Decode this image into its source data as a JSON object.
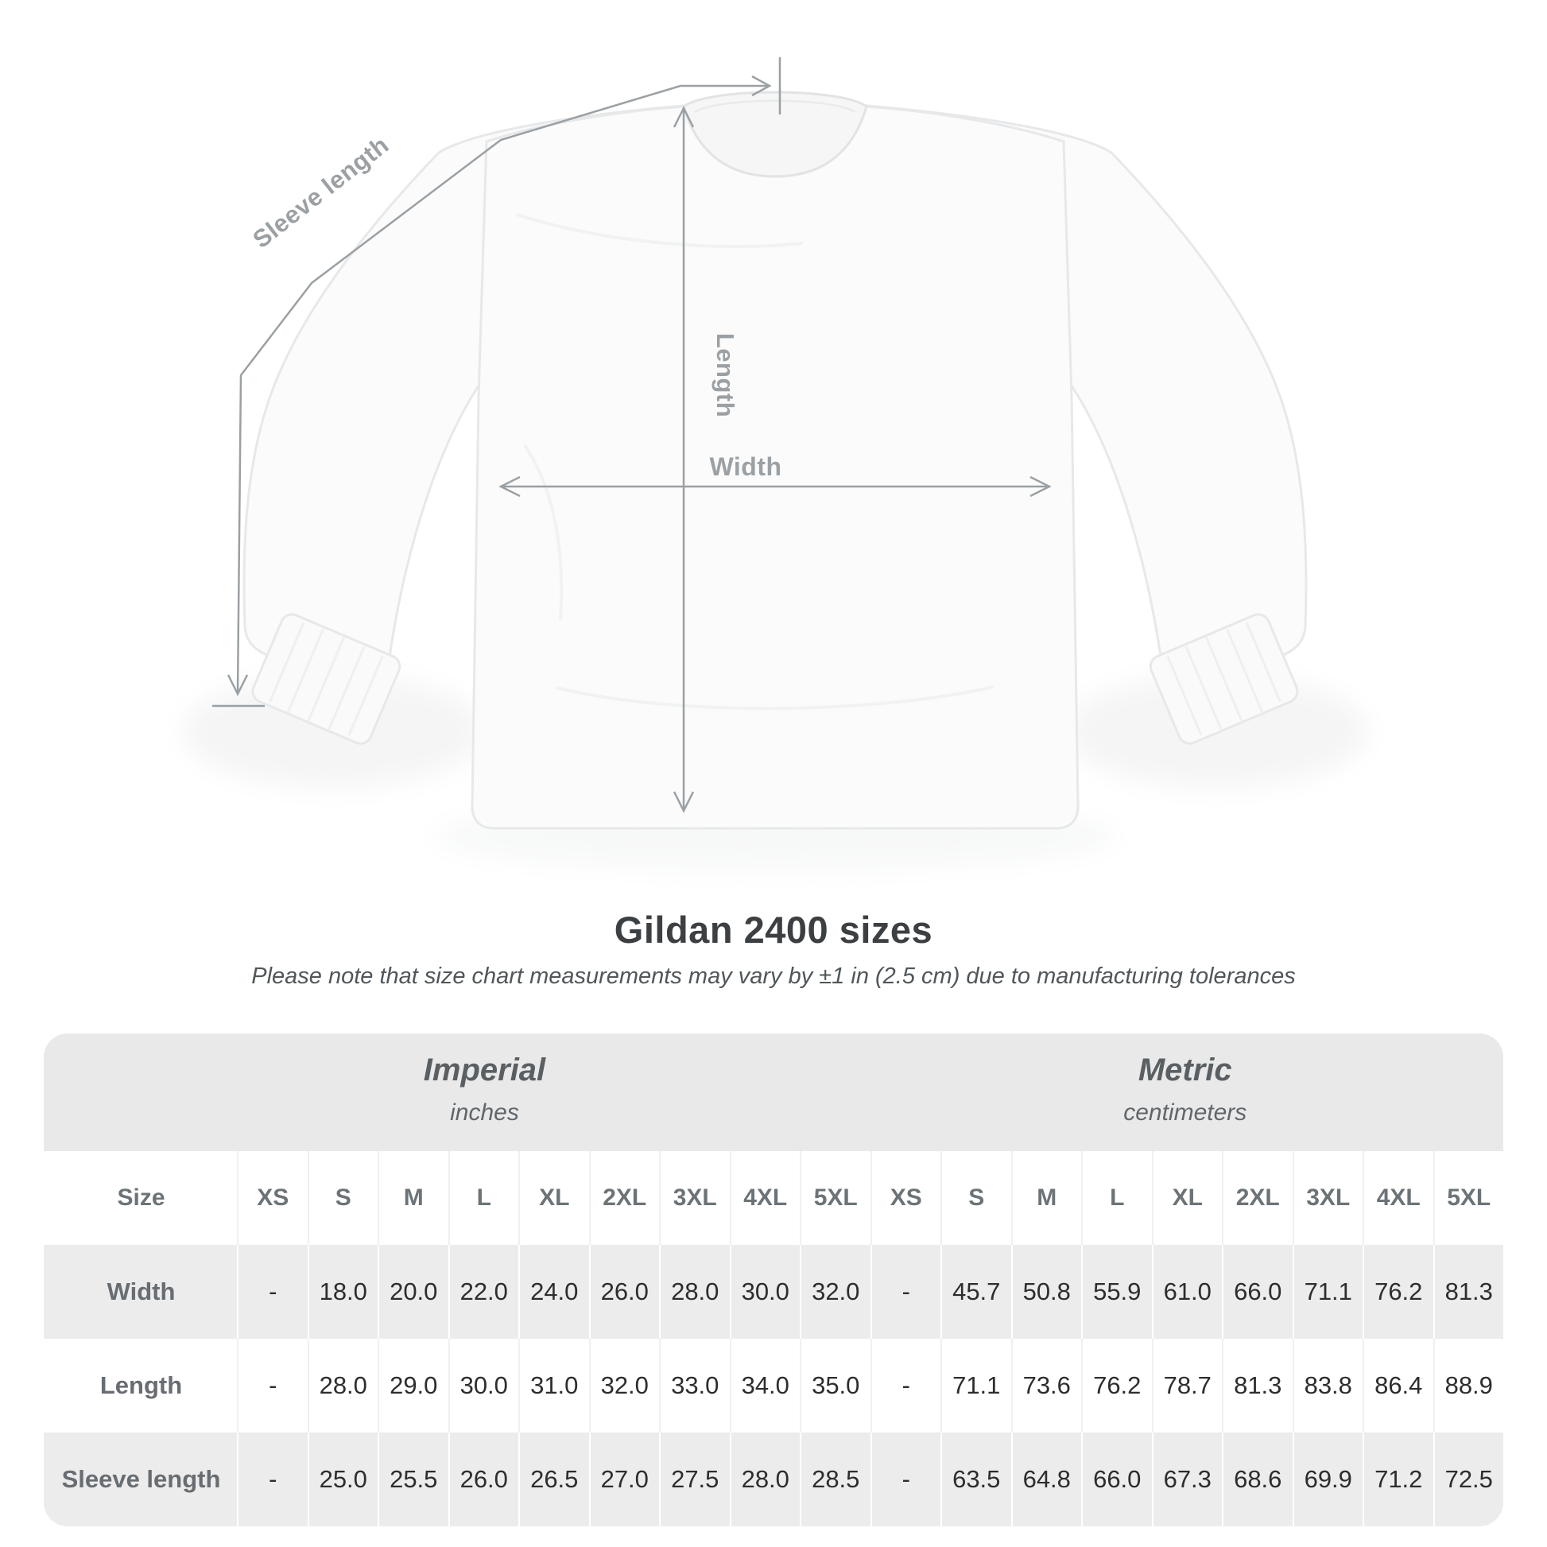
{
  "diagram": {
    "sleeve_length_label": "Sleeve length",
    "length_label": "Length",
    "width_label": "Width",
    "line_color": "#9aa0a4",
    "label_color": "#9ba0a4"
  },
  "title": "Gildan 2400 sizes",
  "subtitle": "Please note that size chart measurements may vary by ±1 in (2.5 cm) due to manufacturing tolerances",
  "table": {
    "imperial_label": "Imperial",
    "imperial_unit": "inches",
    "metric_label": "Metric",
    "metric_unit": "centimeters",
    "size_header_label": "Size",
    "size_columns": [
      "XS",
      "S",
      "M",
      "L",
      "XL",
      "2XL",
      "3XL",
      "4XL",
      "5XL"
    ],
    "row_gray_color": "#ececec",
    "band_color": "#e9e9e9",
    "rows": [
      {
        "label": "Width",
        "imperial": [
          "-",
          "18.0",
          "20.0",
          "22.0",
          "24.0",
          "26.0",
          "28.0",
          "30.0",
          "32.0"
        ],
        "metric": [
          "-",
          "45.7",
          "50.8",
          "55.9",
          "61.0",
          "66.0",
          "71.1",
          "76.2",
          "81.3"
        ]
      },
      {
        "label": "Length",
        "imperial": [
          "-",
          "28.0",
          "29.0",
          "30.0",
          "31.0",
          "32.0",
          "33.0",
          "34.0",
          "35.0"
        ],
        "metric": [
          "-",
          "71.1",
          "73.6",
          "76.2",
          "78.7",
          "81.3",
          "83.8",
          "86.4",
          "88.9"
        ]
      },
      {
        "label": "Sleeve length",
        "imperial": [
          "-",
          "25.0",
          "25.5",
          "26.0",
          "26.5",
          "27.0",
          "27.5",
          "28.0",
          "28.5"
        ],
        "metric": [
          "-",
          "63.5",
          "64.8",
          "66.0",
          "67.3",
          "68.6",
          "69.9",
          "71.2",
          "72.5"
        ]
      }
    ]
  }
}
